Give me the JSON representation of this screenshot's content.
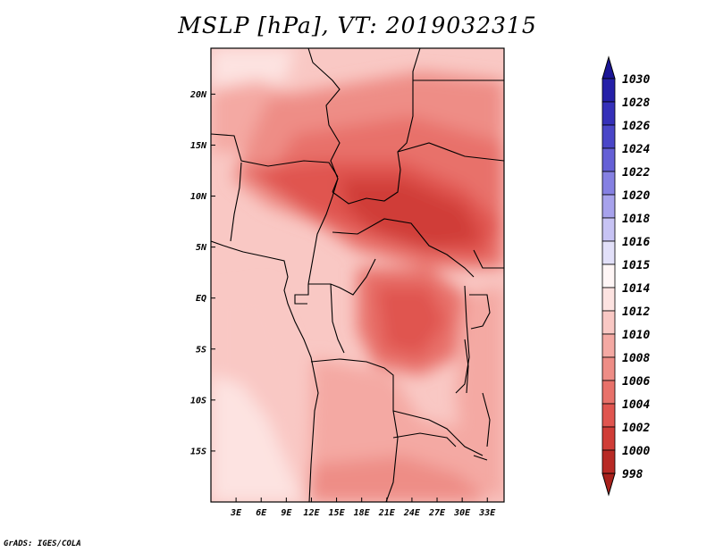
{
  "title": "MSLP [hPa], VT: 2019032315",
  "credit": "GrADS: IGES/COLA",
  "map": {
    "lon_range": [
      0,
      35
    ],
    "lat_range": [
      -20,
      24.5
    ],
    "lat_ticks": [
      {
        "value": 20,
        "label": "20N"
      },
      {
        "value": 15,
        "label": "15N"
      },
      {
        "value": 10,
        "label": "10N"
      },
      {
        "value": 5,
        "label": "5N"
      },
      {
        "value": 0,
        "label": "EQ"
      },
      {
        "value": -5,
        "label": "5S"
      },
      {
        "value": -10,
        "label": "10S"
      },
      {
        "value": -15,
        "label": "15S"
      }
    ],
    "lon_ticks": [
      {
        "value": 3,
        "label": "3E"
      },
      {
        "value": 6,
        "label": "6E"
      },
      {
        "value": 9,
        "label": "9E"
      },
      {
        "value": 12,
        "label": "12E"
      },
      {
        "value": 15,
        "label": "15E"
      },
      {
        "value": 18,
        "label": "18E"
      },
      {
        "value": 21,
        "label": "21E"
      },
      {
        "value": 24,
        "label": "24E"
      },
      {
        "value": 27,
        "label": "27E"
      },
      {
        "value": 30,
        "label": "30E"
      },
      {
        "value": 33,
        "label": "33E"
      }
    ]
  },
  "colorbar": {
    "levels": [
      {
        "label": "1030",
        "color": "#1b1596"
      },
      {
        "label": "1028",
        "color": "#2520a8"
      },
      {
        "label": "1026",
        "color": "#3530b9"
      },
      {
        "label": "1024",
        "color": "#4a46c8"
      },
      {
        "label": "1022",
        "color": "#6560d6"
      },
      {
        "label": "1020",
        "color": "#8580e2"
      },
      {
        "label": "1018",
        "color": "#a7a2ec"
      },
      {
        "label": "1016",
        "color": "#c7c3f4"
      },
      {
        "label": "1015",
        "color": "#e2e0f9"
      },
      {
        "label": "1014",
        "color": "#fff6f6"
      },
      {
        "label": "1012",
        "color": "#fde3e1"
      },
      {
        "label": "1010",
        "color": "#f9c8c4"
      },
      {
        "label": "1008",
        "color": "#f4a9a3"
      },
      {
        "label": "1006",
        "color": "#ee8d86"
      },
      {
        "label": "1004",
        "color": "#e8716a"
      },
      {
        "label": "1002",
        "color": "#e0554f"
      },
      {
        "label": "1000",
        "color": "#d03d37"
      },
      {
        "label": "998",
        "color": "#b82a25"
      }
    ],
    "top_color": "#1b1596",
    "bottom_color": "#a8211c"
  }
}
